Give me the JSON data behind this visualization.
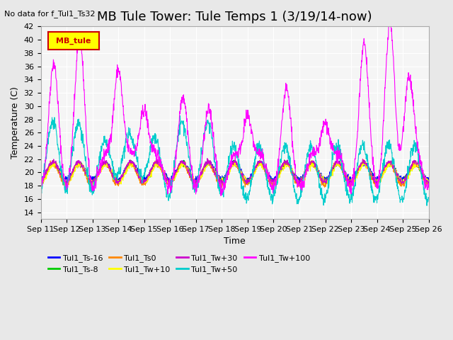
{
  "title": "MB Tule Tower: Tule Temps 1 (3/19/14-now)",
  "no_data_text": "No data for f_Tul1_Ts32",
  "xlabel": "Time",
  "ylabel": "Temperature (C)",
  "ylim": [
    13,
    41
  ],
  "yticks": [
    14,
    16,
    18,
    20,
    22,
    24,
    26,
    28,
    30,
    32,
    34,
    36,
    38,
    40,
    42
  ],
  "x_tick_positions": [
    0,
    1,
    2,
    3,
    4,
    5,
    6,
    7,
    8,
    9,
    10,
    11,
    12,
    13,
    14,
    15
  ],
  "x_tick_labels": [
    "Sep 11",
    "Sep 12",
    "Sep 13",
    "Sep 14",
    "Sep 15",
    "Sep 16",
    "Sep 17",
    "Sep 18",
    "Sep 19",
    "Sep 20",
    "Sep 21",
    "Sep 22",
    "Sep 23",
    "Sep 24",
    "Sep 25",
    "Sep 26"
  ],
  "legend_label_box": "MB_tule",
  "legend_box_color": "#ffff00",
  "legend_box_border": "#cc0000",
  "series": [
    {
      "label": "Tul1_Ts-16",
      "color": "#0000ff"
    },
    {
      "label": "Tul1_Ts-8",
      "color": "#00cc00"
    },
    {
      "label": "Tul1_Ts0",
      "color": "#ff8800"
    },
    {
      "label": "Tul1_Tw+10",
      "color": "#ffff00"
    },
    {
      "label": "Tul1_Tw+30",
      "color": "#cc00cc"
    },
    {
      "label": "Tul1_Tw+50",
      "color": "#00cccc"
    },
    {
      "label": "Tul1_Tw+100",
      "color": "#ff00ff"
    }
  ],
  "bg_color": "#e8e8e8",
  "plot_bg": "#f5f5f5",
  "grid_color": "#ffffff",
  "title_fontsize": 13,
  "label_fontsize": 9,
  "tick_fontsize": 8
}
